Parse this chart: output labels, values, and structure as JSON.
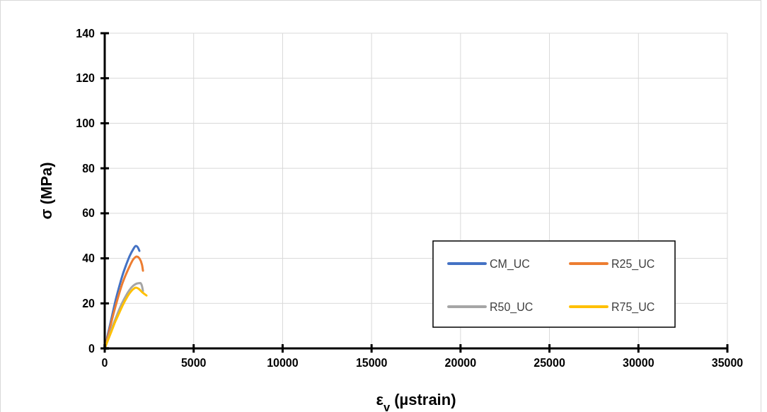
{
  "chart_data": {
    "type": "line",
    "xlabel": "ε$_{v}$ (µstrain)",
    "ylabel": "σ (MPa)",
    "xlim": [
      0,
      35000
    ],
    "xticks": [
      0,
      5000,
      10000,
      15000,
      20000,
      25000,
      30000,
      35000
    ],
    "ylim": [
      0,
      140
    ],
    "yticks": [
      0,
      20,
      40,
      60,
      80,
      100,
      120,
      140
    ],
    "grid": true,
    "legend": "bottom right",
    "marker": "none",
    "line_style": "solid",
    "series": [
      {
        "name": "CM_UC",
        "color": "#4472c4",
        "x": [
          0,
          200,
          400,
          600,
          800,
          1000,
          1200,
          1400,
          1600,
          1750,
          1850,
          1950
        ],
        "values": [
          0,
          7,
          14,
          21,
          27,
          32.5,
          37,
          41,
          44,
          45.5,
          45,
          43.3
        ]
      },
      {
        "name": "R25_UC",
        "color": "#ed7d31",
        "x": [
          0,
          200,
          400,
          600,
          800,
          1000,
          1200,
          1400,
          1600,
          1800,
          1950,
          2100,
          2150
        ],
        "values": [
          0,
          6,
          12.5,
          18.5,
          24,
          29,
          33,
          36.5,
          39.5,
          40.8,
          40,
          37,
          34.5
        ]
      },
      {
        "name": "R50_UC",
        "color": "#a5a5a5",
        "x": [
          0,
          200,
          400,
          600,
          800,
          1000,
          1200,
          1400,
          1600,
          1800,
          2000,
          2100,
          2150
        ],
        "values": [
          0,
          4.5,
          9,
          13,
          17,
          20.5,
          23.5,
          26,
          27.8,
          28.8,
          29,
          27.5,
          25.5
        ]
      },
      {
        "name": "R75_UC",
        "color": "#ffc000",
        "x": [
          0,
          200,
          400,
          600,
          800,
          1000,
          1200,
          1400,
          1600,
          1750,
          1900,
          2100,
          2350
        ],
        "values": [
          0,
          4,
          8,
          12,
          15.5,
          19,
          22,
          24.5,
          26.3,
          27,
          26.5,
          25,
          23.5
        ]
      }
    ]
  }
}
